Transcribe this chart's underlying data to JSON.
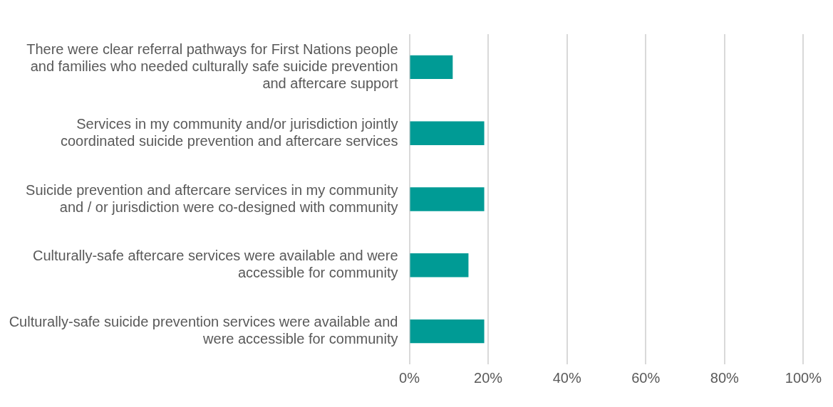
{
  "chart_data": {
    "type": "bar",
    "orientation": "horizontal",
    "categories": [
      "There were clear referral pathways for First Nations people and families who needed culturally safe suicide prevention and aftercare support",
      "Services in my community and/or jurisdiction jointly coordinated suicide prevention and aftercare services",
      "Suicide prevention and aftercare services in my community and / or jurisdiction were co-designed with community",
      "Culturally-safe aftercare services were available and were accessible for community",
      "Culturally-safe suicide prevention services were available and were accessible for community"
    ],
    "values": [
      11,
      19,
      19,
      15,
      19
    ],
    "color": "#009b95",
    "xlim": [
      0,
      100
    ],
    "xticks": [
      {
        "value": 0,
        "label": "0%"
      },
      {
        "value": 20,
        "label": "20%"
      },
      {
        "value": 40,
        "label": "40%"
      },
      {
        "value": 60,
        "label": "60%"
      },
      {
        "value": 80,
        "label": "80%"
      },
      {
        "value": 100,
        "label": "100%"
      }
    ],
    "grid": "x",
    "legend": false
  }
}
